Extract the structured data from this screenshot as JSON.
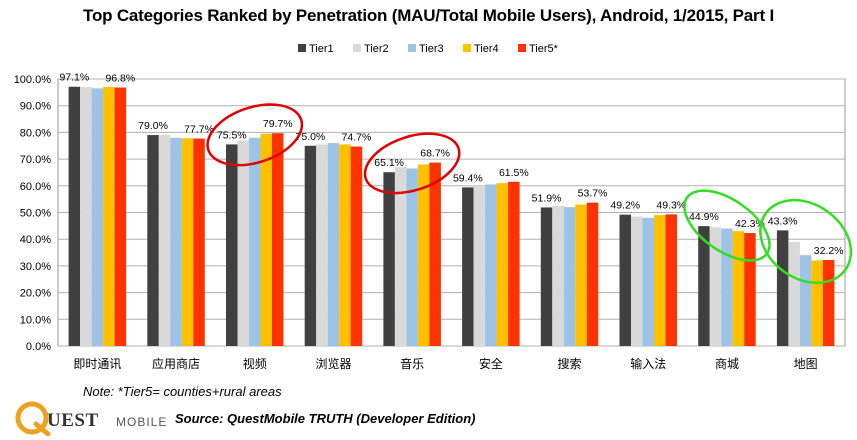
{
  "title": "Top Categories Ranked by Penetration (MAU/Total Mobile Users), Android, 1/2015, Part I",
  "note": "Note: *Tier5= counties+rural areas",
  "source": "Source: QuestMobile TRUTH (Developer Edition)",
  "logo": {
    "text": "UEST",
    "sub": "MOBILE"
  },
  "colors": {
    "Tier1": "#404040",
    "Tier2": "#d9d9d9",
    "Tier3": "#9dc3e6",
    "Tier4": "#ffc000",
    "Tier5*": "#ff3300",
    "highlight_red": "#e00000",
    "highlight_green": "#33dd22"
  },
  "chart_data": {
    "type": "bar",
    "title": "Top Categories Ranked by Penetration (MAU/Total Mobile Users), Android, 1/2015, Part I",
    "ylim": [
      0,
      100
    ],
    "yticks": [
      "0.0%",
      "10.0%",
      "20.0%",
      "30.0%",
      "40.0%",
      "50.0%",
      "60.0%",
      "70.0%",
      "80.0%",
      "90.0%",
      "100.0%"
    ],
    "grid": true,
    "legend_position": "top-right",
    "categories": [
      "即时通讯",
      "应用商店",
      "视频",
      "浏览器",
      "音乐",
      "安全",
      "搜索",
      "输入法",
      "商城",
      "地图"
    ],
    "series": [
      {
        "name": "Tier1",
        "values": [
          97.1,
          79.0,
          75.5,
          75.0,
          65.1,
          59.4,
          51.9,
          49.2,
          44.9,
          43.3
        ]
      },
      {
        "name": "Tier2",
        "values": [
          97.0,
          79.0,
          77.0,
          75.5,
          67.0,
          60.0,
          52.5,
          48.5,
          44.5,
          39.0
        ]
      },
      {
        "name": "Tier3",
        "values": [
          96.5,
          78.0,
          78.0,
          76.0,
          66.5,
          60.5,
          52.0,
          48.0,
          44.0,
          34.0
        ]
      },
      {
        "name": "Tier4",
        "values": [
          97.0,
          77.8,
          79.5,
          75.5,
          68.0,
          61.0,
          53.0,
          49.0,
          43.0,
          32.0
        ]
      },
      {
        "name": "Tier5*",
        "values": [
          96.8,
          77.7,
          79.7,
          74.7,
          68.7,
          61.5,
          53.7,
          49.3,
          42.3,
          32.2
        ]
      }
    ],
    "data_labels": [
      [
        "97.1%",
        "96.8%"
      ],
      [
        "79.0%",
        "77.7%"
      ],
      [
        "75.5%",
        "79.7%"
      ],
      [
        "75.0%",
        "74.7%"
      ],
      [
        "65.1%",
        "68.7%"
      ],
      [
        "59.4%",
        "61.5%"
      ],
      [
        "51.9%",
        "53.7%"
      ],
      [
        "49.2%",
        "49.3%"
      ],
      [
        "44.9%",
        "42.3%"
      ],
      [
        "43.3%",
        "32.2%"
      ]
    ],
    "highlights": [
      {
        "categories": [
          "视频"
        ],
        "color": "red"
      },
      {
        "categories": [
          "音乐"
        ],
        "color": "red"
      },
      {
        "categories": [
          "商城"
        ],
        "color": "green"
      },
      {
        "categories": [
          "地图"
        ],
        "color": "green"
      }
    ]
  }
}
